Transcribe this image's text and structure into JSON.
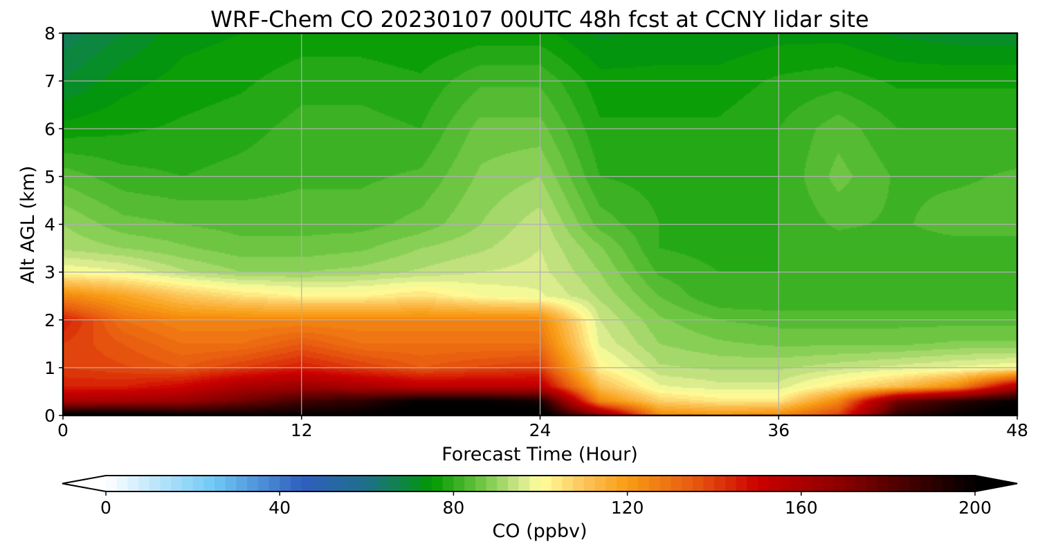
{
  "chart_data": {
    "type": "heatmap",
    "title": "WRF-Chem CO  20230107 00UTC 48h fcst at CCNY lidar site",
    "xlabel": "Forecast Time (Hour)",
    "ylabel": "Alt AGL (km)",
    "xlim": [
      0,
      48
    ],
    "ylim": [
      0,
      8
    ],
    "xticks": [
      0,
      12,
      24,
      36,
      48
    ],
    "yticks": [
      0,
      1,
      2,
      3,
      4,
      5,
      6,
      7,
      8
    ],
    "grid": true,
    "z_field": "CO mixing ratio (ppbv)",
    "time_hours": [
      0,
      3,
      6,
      9,
      12,
      15,
      18,
      21,
      24,
      27,
      30,
      33,
      36,
      39,
      42,
      45,
      48
    ],
    "altitude_km": [
      0,
      0.3,
      0.6,
      1.0,
      1.5,
      2.0,
      2.5,
      3.0,
      3.5,
      4.0,
      5.0,
      6.0,
      7.0,
      8.0
    ],
    "values": [
      [
        205,
        205,
        200,
        200,
        200,
        200,
        205,
        205,
        205,
        170,
        125,
        122,
        125,
        140,
        190,
        200,
        205
      ],
      [
        160,
        162,
        165,
        175,
        185,
        190,
        200,
        200,
        195,
        125,
        108,
        104,
        104,
        125,
        175,
        190,
        200
      ],
      [
        145,
        145,
        150,
        160,
        165,
        160,
        155,
        155,
        155,
        112,
        98,
        96,
        96,
        104,
        112,
        125,
        160
      ],
      [
        140,
        138,
        135,
        140,
        145,
        140,
        135,
        138,
        140,
        102,
        93,
        92,
        92,
        94,
        96,
        98,
        100
      ],
      [
        140,
        135,
        130,
        130,
        135,
        130,
        130,
        130,
        130,
        97,
        90,
        88,
        87,
        87,
        87,
        88,
        88
      ],
      [
        145,
        130,
        125,
        125,
        125,
        125,
        125,
        125,
        125,
        95,
        88,
        85,
        84,
        84,
        84,
        84,
        84
      ],
      [
        125,
        118,
        110,
        105,
        102,
        102,
        105,
        100,
        98,
        92,
        85,
        80,
        80,
        80,
        80,
        80,
        80
      ],
      [
        100,
        98,
        93,
        90,
        90,
        91,
        93,
        95,
        96,
        90,
        82,
        80,
        80,
        80,
        80,
        80,
        80
      ],
      [
        92,
        90,
        88,
        86,
        86,
        87,
        90,
        92,
        95,
        88,
        80,
        79,
        80,
        81,
        81,
        81,
        81
      ],
      [
        90,
        86,
        85,
        84,
        84,
        84,
        86,
        90,
        94,
        84,
        80,
        79,
        80,
        83,
        82,
        84,
        84
      ],
      [
        84,
        81,
        80,
        81,
        82,
        82,
        83,
        88,
        90,
        80,
        79,
        79,
        80,
        86,
        82,
        82,
        83
      ],
      [
        76,
        77,
        78,
        79,
        81,
        81,
        80,
        86,
        86,
        78,
        78,
        78,
        80,
        84,
        80,
        80,
        80
      ],
      [
        70,
        74,
        76,
        77,
        79,
        79,
        78,
        82,
        82,
        76,
        76,
        76,
        78,
        79,
        77,
        77,
        77
      ],
      [
        66,
        70,
        74,
        75,
        76,
        76,
        75,
        76,
        76,
        72,
        73,
        73,
        74,
        74,
        72,
        71,
        71
      ]
    ]
  },
  "colorbar": {
    "label": "CO  (ppbv)",
    "min": 0,
    "max": 200,
    "step": 2.5,
    "ticks": [
      0,
      40,
      80,
      120,
      160,
      200
    ],
    "extend": "both",
    "color_stops": [
      {
        "v": 0,
        "c": "#ffffff"
      },
      {
        "v": 25,
        "c": "#6ec8f5"
      },
      {
        "v": 45,
        "c": "#2f5fbf"
      },
      {
        "v": 60,
        "c": "#1f6f8a"
      },
      {
        "v": 70,
        "c": "#0a8a35"
      },
      {
        "v": 75,
        "c": "#009900"
      },
      {
        "v": 87,
        "c": "#74c846"
      },
      {
        "v": 95,
        "c": "#cfe68a"
      },
      {
        "v": 100,
        "c": "#ffff9b"
      },
      {
        "v": 110,
        "c": "#fcc45a"
      },
      {
        "v": 120,
        "c": "#f89c14"
      },
      {
        "v": 135,
        "c": "#e85a10"
      },
      {
        "v": 150,
        "c": "#cc0000"
      },
      {
        "v": 170,
        "c": "#880000"
      },
      {
        "v": 185,
        "c": "#420000"
      },
      {
        "v": 200,
        "c": "#000000"
      }
    ]
  }
}
